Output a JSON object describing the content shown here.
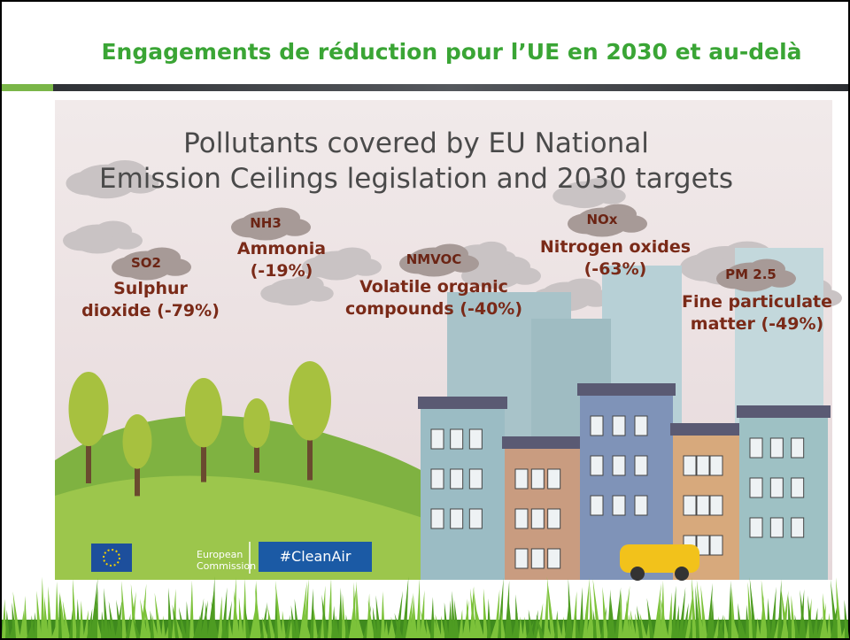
{
  "header": {
    "title": "Engagements de réduction pour l’UE en 2030 et au-delà"
  },
  "infographic": {
    "title_lines": [
      "Pollutants covered by EU National",
      "Emission Ceilings legislation and 2030 targets"
    ],
    "pollutants": [
      {
        "code": "SO2",
        "lines": [
          "Sulphur",
          "dioxide (-79%)"
        ]
      },
      {
        "code": "NH3",
        "lines": [
          "Ammonia",
          "(-19%)"
        ]
      },
      {
        "code": "NMVOC",
        "lines": [
          "Volatile organic",
          "compounds (-40%)"
        ]
      },
      {
        "code": "NOx",
        "lines": [
          "Nitrogen oxides",
          "(-63%)"
        ]
      },
      {
        "code": "PM 2.5",
        "lines": [
          "Fine particulate",
          "matter  (-49%)"
        ]
      }
    ],
    "logo": {
      "lines": [
        "European",
        "Commission"
      ],
      "hashtag": "#CleanAir"
    }
  }
}
